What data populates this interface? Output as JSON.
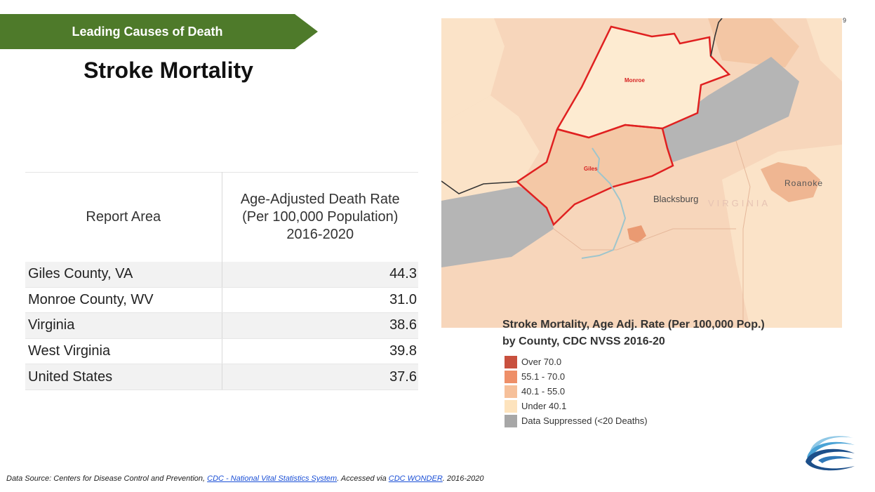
{
  "banner": {
    "label": "Leading Causes of Death",
    "color": "#4e7a2a"
  },
  "title": "Stroke Mortality",
  "page_number": "9",
  "table": {
    "headers": {
      "area": "Report Area",
      "rate_line1": "Age-Adjusted Death Rate",
      "rate_line2": "(Per 100,000 Population)",
      "rate_line3": "2016-2020"
    },
    "rows": [
      {
        "area": "Giles County, VA",
        "rate": "44.3"
      },
      {
        "area": "Monroe County, WV",
        "rate": "31.0"
      },
      {
        "area": "Virginia",
        "rate": "38.6"
      },
      {
        "area": "West Virginia",
        "rate": "39.8"
      },
      {
        "area": "United States",
        "rate": "37.6"
      }
    ]
  },
  "map": {
    "labels": {
      "monroe": "Monroe",
      "giles": "Giles",
      "blacksburg": "Blacksburg",
      "virginia": "VIRGINIA",
      "roanoke": "Roanoke"
    },
    "colors": {
      "under_40": "#fbe3c8",
      "mid": "#f7cfad",
      "high": "#f0a583",
      "suppressed": "#b5b5b5",
      "highlight": "#e02020"
    }
  },
  "legend": {
    "title_line1": "Stroke Mortality, Age Adj. Rate (Per 100,000 Pop.)",
    "title_line2": "by County, CDC NVSS 2016-20",
    "items": [
      {
        "label": "Over 70.0",
        "color": "#c8503e"
      },
      {
        "label": "55.1 - 70.0",
        "color": "#ee8f68"
      },
      {
        "label": "40.1 - 55.0",
        "color": "#f6c09a"
      },
      {
        "label": "Under 40.1",
        "color": "#fde3bd"
      },
      {
        "label": "Data Suppressed (<20 Deaths)",
        "color": "#a7a7a7"
      }
    ]
  },
  "footer": {
    "prefix": "Data Source: Centers for Disease Control and Prevention, ",
    "link1": "CDC - National Vital Statistics System",
    "middle": ". Accessed via ",
    "link2": "CDC WONDER",
    "suffix": ". 2016-2020"
  }
}
